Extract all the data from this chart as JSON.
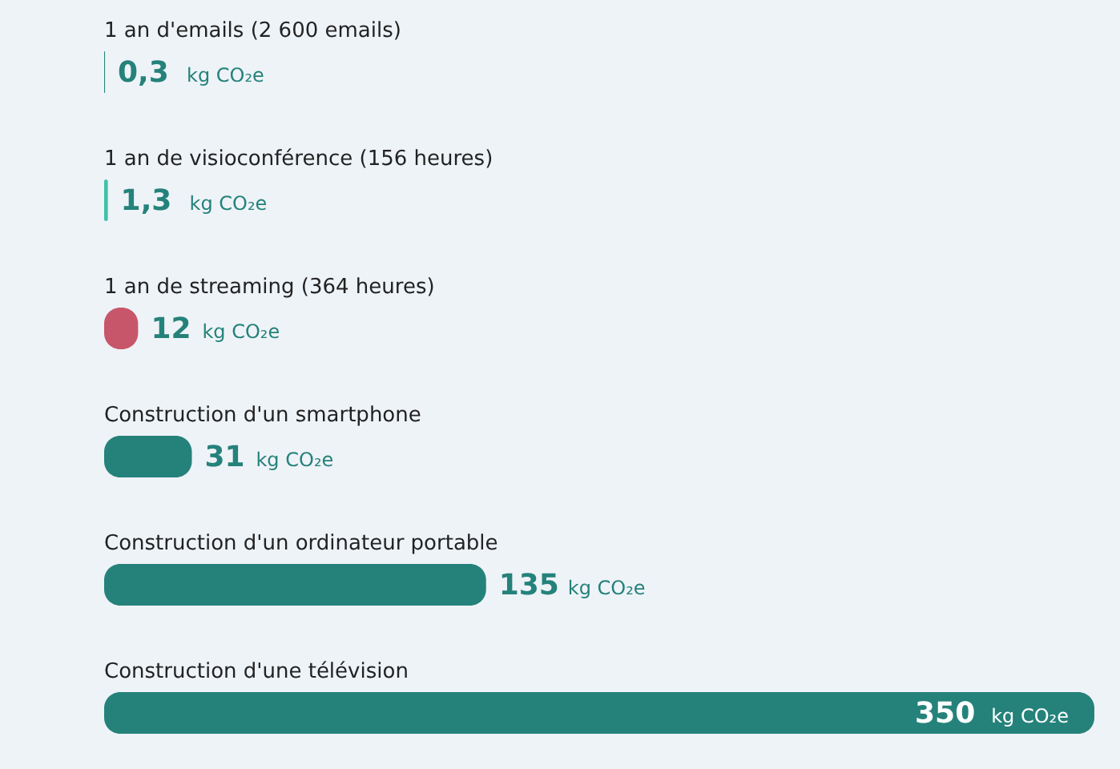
{
  "chart_data": {
    "type": "bar",
    "orientation": "horizontal",
    "categories": [
      "1 an d'emails (2 600 emails)",
      "1 an de visioconférence (156 heures)",
      "1 an de streaming (364 heures)",
      "Construction d'un smartphone",
      "Construction d'un ordinateur portable",
      "Construction d'une télévision"
    ],
    "values": [
      0.3,
      1.3,
      12,
      31,
      135,
      350
    ],
    "colors": [
      "#25827a",
      "#3ec1a8",
      "#c8566a",
      "#25827a",
      "#25827a",
      "#25827a"
    ],
    "value_labels": [
      "0,3 kg CO₂e",
      "1,3 kg CO₂e",
      "12 kg CO₂e",
      "31 kg CO₂e",
      "135 kg CO₂e",
      "350 kg CO₂e"
    ],
    "xlim": [
      0,
      350
    ],
    "tick_labels": false
  }
}
